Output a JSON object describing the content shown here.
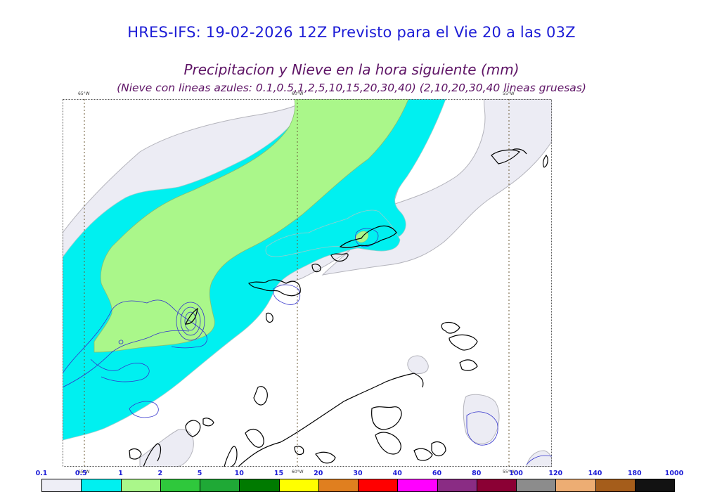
{
  "header": {
    "title": "HRES-IFS: 19-02-2026 12Z Previsto para el Vie 20 a las 03Z",
    "subtitle": "Precipitacion y Nieve en la hora siguiente (mm)",
    "note": "(Nieve con lineas azules: 0.1,0.5,1,2,5,10,15,20,30,40)  (2,10,20,30,40 lineas gruesas)"
  },
  "map": {
    "meridians": [
      "65°W",
      "60°W",
      "55°W"
    ],
    "colors": {
      "border": "#555555",
      "coast": "#000000",
      "snow_contour": "#3333cc"
    }
  },
  "colorbar": {
    "labels": [
      "0.1",
      "0.5",
      "1",
      "2",
      "5",
      "10",
      "15",
      "20",
      "30",
      "40",
      "60",
      "80",
      "100",
      "120",
      "140",
      "180",
      "1000"
    ],
    "colors": [
      "#eeeef6",
      "#00f0f0",
      "#aaf78a",
      "#2fc83c",
      "#1fa936",
      "#007a00",
      "#ffff00",
      "#e07f1f",
      "#ff0000",
      "#ff00ff",
      "#8a2c84",
      "#8b0034",
      "#8c8c8c",
      "#edad73",
      "#a55d1b",
      "#121212"
    ]
  }
}
